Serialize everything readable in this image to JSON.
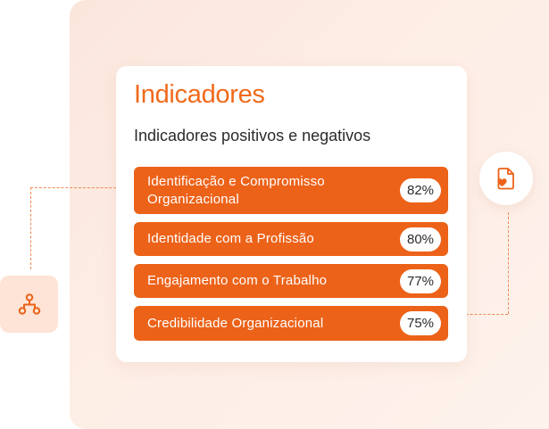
{
  "card": {
    "title": "Indicadores",
    "subtitle": "Indicadores positivos e negativos"
  },
  "indicators": [
    {
      "label_line1": "Identificação e Compromisso",
      "label_line2": "Organizacional",
      "value": "82%"
    },
    {
      "label": "Identidade com a Profissão",
      "value": "80%"
    },
    {
      "label": "Engajamento com o Trabalho",
      "value": "77%"
    },
    {
      "label": "Credibilidade Organizacional",
      "value": "75%"
    }
  ],
  "icons": {
    "left": "hierarchy-icon",
    "right": "document-heart-icon"
  },
  "colors": {
    "accent": "#ec6219",
    "title": "#f06a1b",
    "panel_background": "#fdeee6",
    "icon_box_background": "#fde4d6",
    "dashed_line": "#ef8a52"
  }
}
